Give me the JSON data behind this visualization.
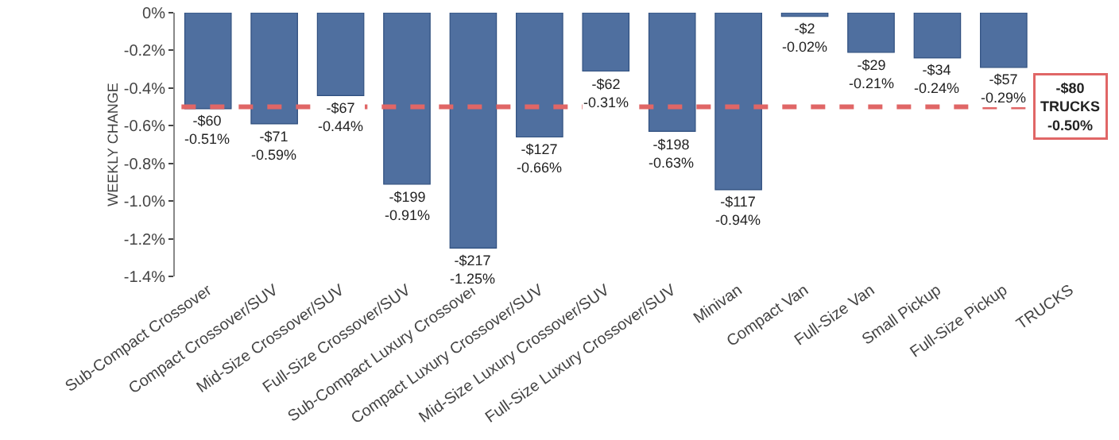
{
  "chart_data": {
    "type": "bar",
    "ylabel": "WEEKLY CHANGE",
    "categories": [
      "Sub-Compact Crossover",
      "Compact Crossover/SUV",
      "Mid-Size Crossover/SUV",
      "Full-Size Crossover/SUV",
      "Sub-Compact Luxury Crossover",
      "Compact Luxury Crossover/SUV",
      "Mid-Size Luxury Crossover/SUV",
      "Full-Size Luxury Crossover/SUV",
      "Minivan",
      "Compact Van",
      "Full-Size Van",
      "Small Pickup",
      "Full-Size Pickup",
      "TRUCKS"
    ],
    "values": [
      -0.51,
      -0.59,
      -0.44,
      -0.91,
      -1.25,
      -0.66,
      -0.31,
      -0.63,
      -0.94,
      -0.02,
      -0.21,
      -0.24,
      -0.29,
      null
    ],
    "value_labels": [
      "-$60\n-0.51%",
      "-$71\n-0.59%",
      "-$67\n-0.44%",
      "-$199\n-0.91%",
      "-$217\n-1.25%",
      "-$127\n-0.66%",
      "-$62\n-0.31%",
      "-$198\n-0.63%",
      "-$117\n-0.94%",
      "-$2\n-0.02%",
      "-$29\n-0.21%",
      "-$34\n-0.24%",
      "-$57\n-0.29%",
      null
    ],
    "color": "#4f6f9f",
    "ylim": [
      -1.4,
      0
    ],
    "yticks": [
      {
        "value": 0,
        "label": "0%"
      },
      {
        "value": -0.2,
        "label": "-0.2%"
      },
      {
        "value": -0.4,
        "label": "-0.4%"
      },
      {
        "value": -0.6,
        "label": "-0.6%"
      },
      {
        "value": -0.8,
        "label": "-0.8%"
      },
      {
        "value": -1.0,
        "label": "-1.0%"
      },
      {
        "value": -1.2,
        "label": "-1.2%"
      },
      {
        "value": -1.4,
        "label": "-1.4%"
      }
    ],
    "ref_lines": [
      {
        "axis": "y",
        "value": -0.5,
        "label": "-$80\nTRUCKS\n-0.50%",
        "color": "#e06666",
        "line_style": "dashed"
      }
    ],
    "grid": false
  }
}
